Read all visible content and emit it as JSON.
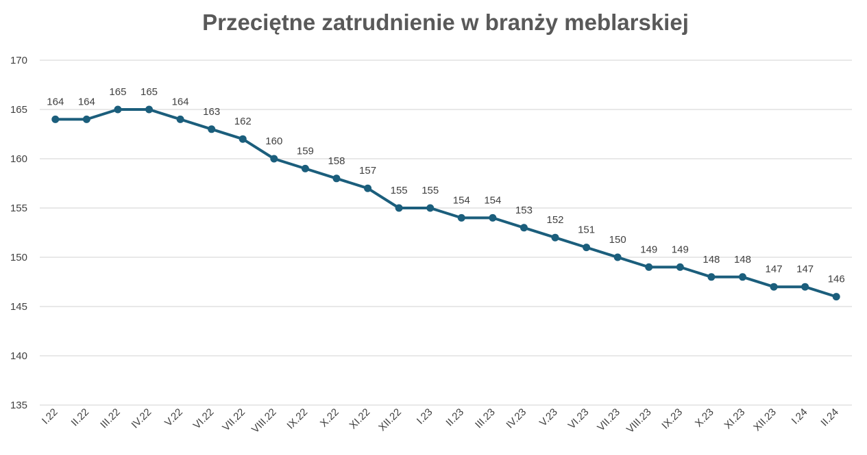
{
  "chart_data": {
    "type": "line",
    "title": "Przeciętne zatrudnienie w branży meblarskiej",
    "xlabel": "",
    "ylabel": "",
    "categories": [
      "I.22",
      "II.22",
      "III.22",
      "IV.22",
      "V.22",
      "VI.22",
      "VII.22",
      "VIII.22",
      "IX.22",
      "X.22",
      "XI.22",
      "XII.22",
      "I.23",
      "II.23",
      "III.23",
      "IV.23",
      "V.23",
      "VI.23",
      "VII.23",
      "VIII.23",
      "IX.23",
      "X.23",
      "XI.23",
      "XII.23",
      "I.24",
      "II.24"
    ],
    "series": [
      {
        "values": [
          164,
          164,
          165,
          165,
          164,
          163,
          162,
          160,
          159,
          158,
          157,
          155,
          155,
          154,
          154,
          153,
          152,
          151,
          150,
          149,
          149,
          148,
          148,
          147,
          147,
          146
        ]
      }
    ],
    "ylim": [
      135,
      170
    ],
    "yticks": [
      135,
      140,
      145,
      150,
      155,
      160,
      165,
      170
    ],
    "grid": true,
    "legend": "none",
    "colors": {
      "line": "#1b5e7c",
      "grid": "#d9d9d9",
      "text": "#404040",
      "title": "#595959"
    }
  }
}
